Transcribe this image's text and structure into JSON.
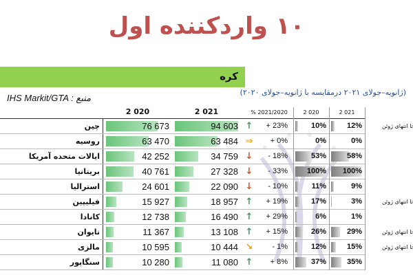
{
  "title": "۱۰ واردکننده اول",
  "banner": "کره",
  "source": "IHS Markit/GTA : منبع",
  "subtitle": "(ژانویه–جولای ۲۰۲۱ درمقایسه با ژانویه–جولای ۲۰۲۰)",
  "headers": {
    "value_2020": "2 020",
    "value_2021": "2 021",
    "pct": "% 2021/2020",
    "share_2020": "2 020",
    "share_2021": "2 021"
  },
  "colors": {
    "up": "#3c9a5f",
    "flat": "#e8a400",
    "down": "#d9531e",
    "title": "#c0504d",
    "banner": "#92d050"
  },
  "rows": [
    {
      "country": "چین",
      "v2020": "76 673",
      "v2021": "94 603",
      "n2020": 76673,
      "n2021": 94603,
      "arrow": "up",
      "arrow_icon": "↑",
      "pct": "+ 23%",
      "s2020": "10%",
      "s2021": "12%",
      "f2020": 0.1,
      "f2021": 0.12,
      "note": "تا انتهای ژوئن"
    },
    {
      "country": "روسیه",
      "v2020": "63 470",
      "v2021": "63 484",
      "n2020": 63470,
      "n2021": 63484,
      "arrow": "flat",
      "arrow_icon": "⇒",
      "pct": "+ 0%",
      "s2020": "0%",
      "s2021": "0%",
      "f2020": 0.0,
      "f2021": 0.0,
      "note": ""
    },
    {
      "country": "ایالات متحده آمریکا",
      "v2020": "42 252",
      "v2021": "34 759",
      "n2020": 42252,
      "n2021": 34759,
      "arrow": "down",
      "arrow_icon": "↓",
      "pct": "- 18%",
      "s2020": "53%",
      "s2021": "58%",
      "f2020": 0.53,
      "f2021": 0.58,
      "note": ""
    },
    {
      "country": "بریتانیا",
      "v2020": "40 761",
      "v2021": "27 328",
      "n2020": 40761,
      "n2021": 27328,
      "arrow": "down",
      "arrow_icon": "↓",
      "pct": "- 33%",
      "s2020": "100%",
      "s2021": "100%",
      "f2020": 1.0,
      "f2021": 1.0,
      "note": ""
    },
    {
      "country": "استرالیا",
      "v2020": "24 601",
      "v2021": "22 090",
      "n2020": 24601,
      "n2021": 22090,
      "arrow": "down",
      "arrow_icon": "↓",
      "pct": "- 10%",
      "s2020": "11%",
      "s2021": "9%",
      "f2020": 0.11,
      "f2021": 0.09,
      "note": ""
    },
    {
      "country": "فیلیپین",
      "v2020": "15 927",
      "v2021": "18 957",
      "n2020": 15927,
      "n2021": 18957,
      "arrow": "up",
      "arrow_icon": "↑",
      "pct": "+ 19%",
      "s2020": "17%",
      "s2021": "3%",
      "f2020": 0.17,
      "f2021": 0.03,
      "note": "تا انتهای ژوئن"
    },
    {
      "country": "کانادا",
      "v2020": "12 738",
      "v2021": "16 490",
      "n2020": 12738,
      "n2021": 16490,
      "arrow": "up",
      "arrow_icon": "↑",
      "pct": "+ 29%",
      "s2020": "6%",
      "s2021": "1%",
      "f2020": 0.06,
      "f2021": 0.01,
      "note": ""
    },
    {
      "country": "تایوان",
      "v2020": "11 367",
      "v2021": "13 108",
      "n2020": 11367,
      "n2021": 13108,
      "arrow": "up",
      "arrow_icon": "↑",
      "pct": "+ 15%",
      "s2020": "26%",
      "s2021": "29%",
      "f2020": 0.26,
      "f2021": 0.29,
      "note": "تا انتهای ژوئن"
    },
    {
      "country": "مالزی",
      "v2020": "10 595",
      "v2021": "10 444",
      "n2020": 10595,
      "n2021": 10444,
      "arrow": "flat-down",
      "arrow_icon": "↘",
      "pct": "- 1%",
      "s2020": "12%",
      "s2021": "15%",
      "f2020": 0.12,
      "f2021": 0.15,
      "note": "تا انتهای ژوئن"
    },
    {
      "country": "سنگاپور",
      "v2020": "10 280",
      "v2021": "11 080",
      "n2020": 10280,
      "n2021": 11080,
      "arrow": "up",
      "arrow_icon": "↑",
      "pct": "+ 8%",
      "s2020": "37%",
      "s2021": "35%",
      "f2020": 0.37,
      "f2021": 0.35,
      "note": ""
    }
  ]
}
